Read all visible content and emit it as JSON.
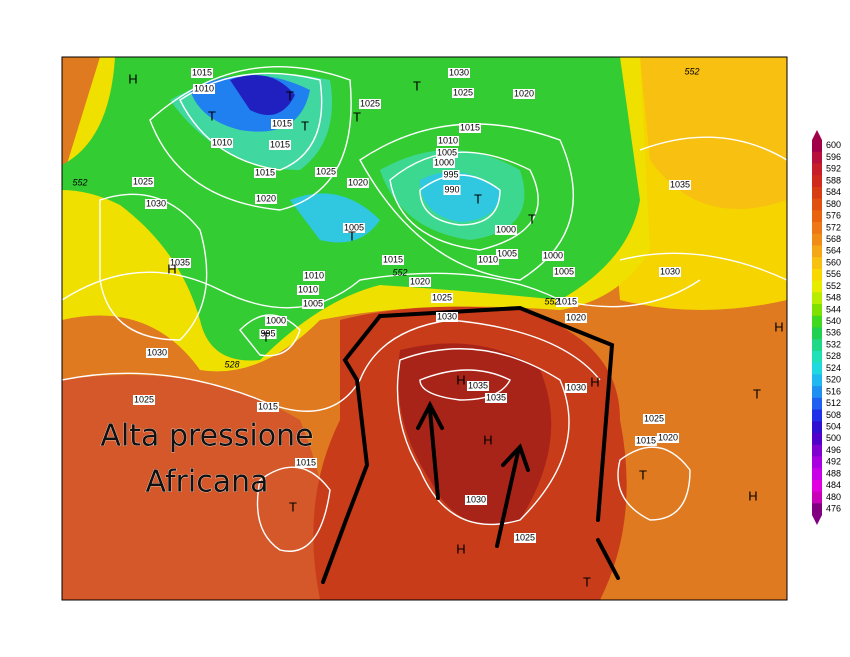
{
  "annotation": [
    "Alta pressione",
    "Africana"
  ],
  "colorbar": {
    "ticks": [
      600,
      596,
      592,
      588,
      584,
      580,
      576,
      572,
      568,
      564,
      560,
      556,
      552,
      548,
      544,
      540,
      536,
      532,
      528,
      524,
      520,
      516,
      512,
      508,
      504,
      500,
      496,
      492,
      488,
      484,
      480,
      476
    ],
    "colors": [
      "#a0004a",
      "#b8103c",
      "#c81e2a",
      "#d02a1c",
      "#d83c14",
      "#e05010",
      "#e86410",
      "#ee7818",
      "#f08c18",
      "#f4a818",
      "#f8c010",
      "#f8d800",
      "#e8ec00",
      "#b8ec00",
      "#80e000",
      "#40d820",
      "#20d050",
      "#20d888",
      "#20e0b8",
      "#20d8e0",
      "#20b8f0",
      "#2090f0",
      "#2060f0",
      "#2030e8",
      "#3010d0",
      "#5000c8",
      "#8000d0",
      "#a800e0",
      "#c800e8",
      "#e000e0",
      "#c800b8",
      "#800080"
    ]
  },
  "isobar_labels": [
    "1015",
    "1010",
    "1010",
    "1015",
    "1020",
    "1015",
    "1015",
    "1025",
    "1020",
    "1025",
    "1030",
    "1025",
    "1020",
    "1015",
    "1010",
    "1005",
    "1000",
    "995",
    "990",
    "1000",
    "1005",
    "1010",
    "1000",
    "1005",
    "1015",
    "1020",
    "1025",
    "1030",
    "1035",
    "1005",
    "1015",
    "1010",
    "1010",
    "1005",
    "1020",
    "1025",
    "1030",
    "1000",
    "995",
    "1030",
    "1025",
    "1015",
    "1015",
    "1035",
    "1035",
    "1030",
    "1025",
    "1015",
    "1020",
    "1030",
    "1025",
    "1035",
    "1030"
  ],
  "height_labels": [
    "552",
    "552",
    "552",
    "552",
    "528"
  ],
  "systems": [
    "H",
    "T",
    "T",
    "T",
    "T",
    "T",
    "T",
    "T",
    "T",
    "H",
    "T",
    "H",
    "H",
    "H",
    "H",
    "T",
    "H",
    "H",
    "T",
    "T",
    "T"
  ]
}
